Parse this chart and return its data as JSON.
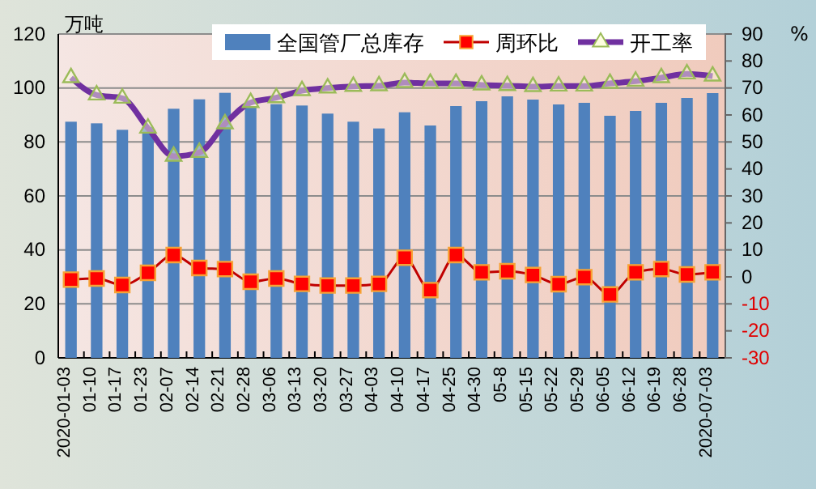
{
  "chart_data": {
    "type": "bar",
    "ylabel": "万吨",
    "y2label": "%",
    "categories": [
      "2020-01-03",
      "01-10",
      "01-17",
      "01-23",
      "02-07",
      "02-14",
      "02-21",
      "02-28",
      "03-06",
      "03-13",
      "03-20",
      "03-27",
      "04-03",
      "04-10",
      "04-17",
      "04-25",
      "04-30",
      "05-8",
      "05-15",
      "05-22",
      "05-29",
      "06-05",
      "06-12",
      "06-19",
      "06-28",
      "2020-07-03"
    ],
    "series": [
      {
        "name": "全国管厂总库存",
        "color": "#4f81bd",
        "values": [
          87.5,
          86.9,
          84.5,
          85.5,
          92.3,
          95.8,
          98.2,
          93,
          94,
          93.5,
          90.5,
          87.5,
          85,
          91,
          86.1,
          93.3,
          95.1,
          96.9,
          95.7,
          93.9,
          94.5,
          89.7,
          91.5,
          94.5,
          96.3,
          98.1
        ]
      },
      {
        "name": "周环比",
        "type": "line",
        "axis": "y2",
        "color": "#c00000",
        "marker": "square",
        "values": [
          -1.0,
          -0.6,
          -3.0,
          1.5,
          8.1,
          3.3,
          2.9,
          -1.8,
          -0.6,
          -2.6,
          -3.2,
          -3.2,
          -2.6,
          7.1,
          -4.9,
          8.1,
          1.7,
          2.1,
          0.7,
          -2.7,
          -0.1,
          -6.5,
          1.7,
          2.9,
          0.9,
          1.7
        ]
      },
      {
        "name": "开工率",
        "type": "line",
        "axis": "y2",
        "color": "#7030a0",
        "marker": "triangle",
        "values": [
          73.8,
          67.4,
          66.2,
          55.1,
          44.7,
          46.1,
          56.7,
          64.6,
          66.4,
          69,
          70,
          70.6,
          70.8,
          72,
          71.7,
          71.7,
          71.1,
          70.9,
          70.5,
          70.7,
          70.7,
          71.7,
          72.5,
          73.8,
          75.2,
          74.4
        ]
      }
    ],
    "ylim": [
      0,
      120
    ],
    "yticks": [
      0,
      20,
      40,
      60,
      80,
      100,
      120
    ],
    "y2lim": [
      -30,
      90
    ],
    "y2ticks": [
      -30,
      -20,
      -10,
      0,
      10,
      20,
      30,
      40,
      50,
      60,
      70,
      80,
      90
    ],
    "grid": "y",
    "legend": "top right"
  }
}
